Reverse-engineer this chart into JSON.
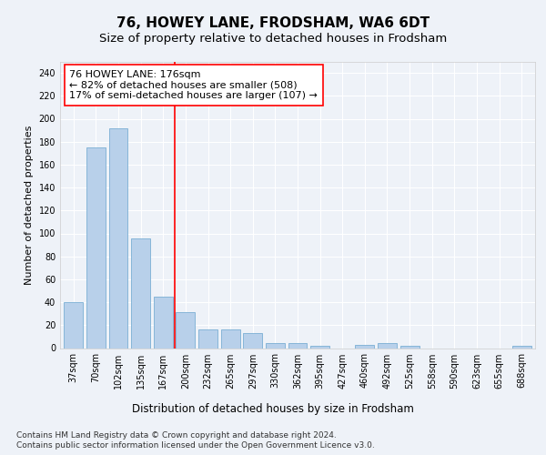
{
  "title": "76, HOWEY LANE, FRODSHAM, WA6 6DT",
  "subtitle": "Size of property relative to detached houses in Frodsham",
  "xlabel": "Distribution of detached houses by size in Frodsham",
  "ylabel": "Number of detached properties",
  "categories": [
    "37sqm",
    "70sqm",
    "102sqm",
    "135sqm",
    "167sqm",
    "200sqm",
    "232sqm",
    "265sqm",
    "297sqm",
    "330sqm",
    "362sqm",
    "395sqm",
    "427sqm",
    "460sqm",
    "492sqm",
    "525sqm",
    "558sqm",
    "590sqm",
    "623sqm",
    "655sqm",
    "688sqm"
  ],
  "values": [
    40,
    175,
    192,
    96,
    45,
    31,
    16,
    16,
    13,
    4,
    4,
    2,
    0,
    3,
    4,
    2,
    0,
    0,
    0,
    0,
    2
  ],
  "bar_color": "#b8d0ea",
  "bar_edgecolor": "#7aaed4",
  "annotation_line1": "76 HOWEY LANE: 176sqm",
  "annotation_line2": "← 82% of detached houses are smaller (508)",
  "annotation_line3": "17% of semi-detached houses are larger (107) →",
  "annotation_box_edgecolor": "red",
  "vline_color": "red",
  "vline_pos": 4.5,
  "ylim": [
    0,
    250
  ],
  "yticks": [
    0,
    20,
    40,
    60,
    80,
    100,
    120,
    140,
    160,
    180,
    200,
    220,
    240
  ],
  "footnote1": "Contains HM Land Registry data © Crown copyright and database right 2024.",
  "footnote2": "Contains public sector information licensed under the Open Government Licence v3.0.",
  "title_fontsize": 11,
  "subtitle_fontsize": 9.5,
  "ylabel_fontsize": 8,
  "xlabel_fontsize": 8.5,
  "tick_fontsize": 7,
  "annotation_fontsize": 8,
  "footnote_fontsize": 6.5,
  "background_color": "#eef2f8",
  "axes_background": "#eef2f8",
  "grid_color": "#ffffff",
  "spine_color": "#cccccc"
}
